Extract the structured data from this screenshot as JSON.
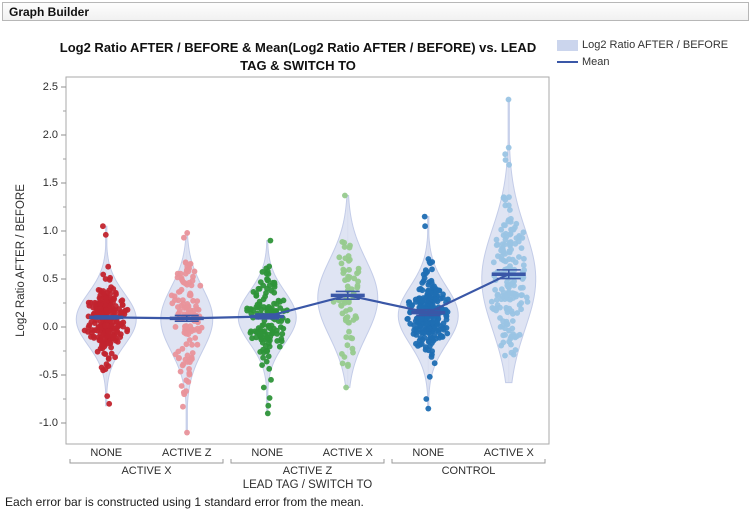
{
  "window": {
    "title": "Graph Builder"
  },
  "chart_data": {
    "type": "scatter",
    "subtype": "violin-jitter-with-mean-error-bars",
    "title": "Log2 Ratio AFTER / BEFORE & Mean(Log2 Ratio AFTER / BEFORE) vs. LEAD TAG & SWITCH TO",
    "title_lines": [
      "Log2 Ratio AFTER / BEFORE & Mean(Log2 Ratio AFTER / BEFORE) vs. LEAD",
      "TAG & SWITCH TO"
    ],
    "legend": [
      {
        "label": "Log2 Ratio AFTER / BEFORE",
        "type": "area",
        "color": "#CBD5ED"
      },
      {
        "label": "Mean",
        "type": "line",
        "color": "#3A57A7"
      }
    ],
    "y_axis": {
      "label": "Log2 Ratio AFTER / BEFORE",
      "tick_min": -1.0,
      "tick_max": 2.5,
      "major_step": 0.5,
      "minor_step": 0.25,
      "range": [
        -1.22,
        2.6
      ],
      "tick_labels": [
        "-1.0",
        "-0.5",
        "0.0",
        "0.5",
        "1.0",
        "1.5",
        "2.0",
        "2.5"
      ]
    },
    "x_axis": {
      "label": "LEAD TAG / SWITCH TO",
      "groups": [
        {
          "label": "ACTIVE X",
          "categories": [
            "NONE",
            "ACTIVE Z"
          ]
        },
        {
          "label": "ACTIVE Z",
          "categories": [
            "NONE",
            "ACTIVE X"
          ]
        },
        {
          "label": "CONTROL",
          "categories": [
            "NONE",
            "ACTIVE X"
          ]
        }
      ]
    },
    "series": [
      {
        "lead_tag": "ACTIVE X",
        "switch_to": "NONE",
        "color": "#C2242E",
        "mean": 0.1,
        "std_error": 0.015,
        "n_points": 230,
        "center": 0.08,
        "spread": 0.21,
        "min": -0.82,
        "max": 1.05,
        "outliers": [
          1.05,
          0.96,
          -0.8,
          -0.72
        ]
      },
      {
        "lead_tag": "ACTIVE X",
        "switch_to": "ACTIVE Z",
        "color": "#E9949B",
        "mean": 0.09,
        "std_error": 0.03,
        "n_points": 115,
        "center": 0.08,
        "spread": 0.3,
        "min": -1.1,
        "max": 0.98,
        "outliers": [
          0.98,
          0.93,
          -1.1,
          -0.83,
          -0.7
        ]
      },
      {
        "lead_tag": "ACTIVE Z",
        "switch_to": "NONE",
        "color": "#2E9339",
        "mean": 0.11,
        "std_error": 0.025,
        "n_points": 140,
        "center": 0.1,
        "spread": 0.22,
        "min": -0.9,
        "max": 0.9,
        "outliers": [
          0.9,
          -0.9,
          -0.82,
          -0.74,
          -0.63,
          -0.55
        ]
      },
      {
        "lead_tag": "ACTIVE Z",
        "switch_to": "ACTIVE X",
        "color": "#96CA8D",
        "mean": 0.33,
        "std_error": 0.04,
        "n_points": 65,
        "center": 0.3,
        "spread": 0.34,
        "min": -0.63,
        "max": 1.37,
        "outliers": [
          1.37,
          -0.63
        ]
      },
      {
        "lead_tag": "CONTROL",
        "switch_to": "NONE",
        "color": "#1F6EB3",
        "mean": 0.15,
        "std_error": 0.03,
        "n_points": 240,
        "center": 0.12,
        "spread": 0.22,
        "min": -0.85,
        "max": 1.15,
        "outliers": [
          1.15,
          1.05,
          -0.85,
          -0.75
        ]
      },
      {
        "lead_tag": "CONTROL",
        "switch_to": "ACTIVE X",
        "color": "#9AC4E4",
        "mean": 0.55,
        "std_error": 0.045,
        "n_points": 170,
        "center": 0.5,
        "spread": 0.4,
        "min": -0.58,
        "max": 2.37,
        "outliers": [
          2.37,
          1.8,
          1.74,
          1.69
        ]
      }
    ],
    "mean_values": [
      0.1,
      0.09,
      0.11,
      0.33,
      0.15,
      0.55
    ],
    "mean_line_color": "#3A57A7",
    "violin_fill": "#D9DFF1",
    "violin_stroke": "#C3CCE8",
    "grid": false,
    "legend_position": "top-right",
    "footnote": "Each error bar is constructed using 1 standard error from the mean."
  }
}
